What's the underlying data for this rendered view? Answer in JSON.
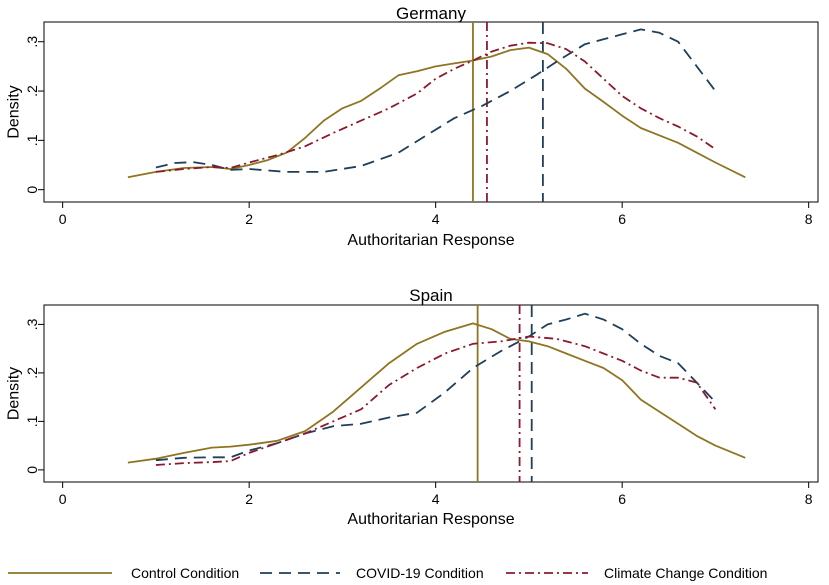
{
  "chart_data": [
    {
      "type": "line",
      "title": "Germany",
      "xlabel": "Authoritarian Response",
      "ylabel": "Density",
      "xlim": [
        -0.2,
        8.1
      ],
      "ylim": [
        -0.025,
        0.34
      ],
      "xticks": [
        0,
        2,
        4,
        6,
        8
      ],
      "yticks": [
        0,
        0.1,
        0.2,
        0.3
      ],
      "xtick_labels": [
        "0",
        "2",
        "4",
        "6",
        "8"
      ],
      "ytick_labels": [
        "0",
        ".1",
        ".2",
        ".3"
      ],
      "series": [
        {
          "name": "Control Condition",
          "color": "#8f7521",
          "dash": "solid",
          "x": [
            0.7,
            1.0,
            1.3,
            1.6,
            1.8,
            2.0,
            2.2,
            2.4,
            2.6,
            2.8,
            3.0,
            3.2,
            3.4,
            3.6,
            3.8,
            4.0,
            4.2,
            4.4,
            4.6,
            4.8,
            5.0,
            5.2,
            5.4,
            5.6,
            5.8,
            6.0,
            6.2,
            6.4,
            6.6,
            6.8,
            7.0,
            7.32
          ],
          "y": [
            0.025,
            0.036,
            0.044,
            0.046,
            0.042,
            0.05,
            0.06,
            0.075,
            0.105,
            0.14,
            0.165,
            0.18,
            0.205,
            0.232,
            0.24,
            0.25,
            0.256,
            0.262,
            0.27,
            0.283,
            0.288,
            0.275,
            0.245,
            0.205,
            0.178,
            0.15,
            0.125,
            0.11,
            0.095,
            0.075,
            0.055,
            0.025
          ]
        },
        {
          "name": "COVID-19 Condition",
          "color": "#1f3f5b",
          "dash": "dashed",
          "x": [
            1.0,
            1.2,
            1.4,
            1.6,
            1.8,
            2.0,
            2.4,
            2.8,
            3.2,
            3.6,
            3.9,
            4.2,
            4.5,
            4.8,
            5.1,
            5.3,
            5.6,
            5.8,
            6.0,
            6.2,
            6.4,
            6.6,
            6.8,
            7.0
          ],
          "y": [
            0.045,
            0.054,
            0.056,
            0.05,
            0.04,
            0.042,
            0.036,
            0.036,
            0.048,
            0.075,
            0.11,
            0.145,
            0.17,
            0.2,
            0.235,
            0.26,
            0.295,
            0.305,
            0.315,
            0.325,
            0.318,
            0.3,
            0.25,
            0.2
          ]
        },
        {
          "name": "Climate Change Condition",
          "color": "#8b1a2e",
          "dash": "dashdot",
          "x": [
            1.0,
            1.3,
            1.6,
            1.8,
            2.0,
            2.3,
            2.6,
            2.9,
            3.2,
            3.5,
            3.8,
            4.0,
            4.2,
            4.4,
            4.6,
            4.8,
            5.0,
            5.2,
            5.4,
            5.6,
            5.8,
            6.0,
            6.2,
            6.4,
            6.6,
            6.8,
            7.0
          ],
          "y": [
            0.036,
            0.042,
            0.046,
            0.044,
            0.055,
            0.07,
            0.088,
            0.115,
            0.14,
            0.165,
            0.195,
            0.225,
            0.245,
            0.262,
            0.28,
            0.292,
            0.298,
            0.297,
            0.285,
            0.26,
            0.225,
            0.19,
            0.165,
            0.145,
            0.128,
            0.108,
            0.082
          ]
        }
      ],
      "reference_lines": [
        {
          "name": "Control Condition",
          "x": 4.4,
          "color": "#8f7521",
          "dash": "solid"
        },
        {
          "name": "COVID-19 Condition",
          "x": 5.15,
          "color": "#1f3f5b",
          "dash": "dashed"
        },
        {
          "name": "Climate Change Condition",
          "x": 4.55,
          "color": "#8b1a2e",
          "dash": "dashdot"
        }
      ]
    },
    {
      "type": "line",
      "title": "Spain",
      "xlabel": "Authoritarian Response",
      "ylabel": "Density",
      "xlim": [
        -0.2,
        8.1
      ],
      "ylim": [
        -0.025,
        0.34
      ],
      "xticks": [
        0,
        2,
        4,
        6,
        8
      ],
      "yticks": [
        0,
        0.1,
        0.2,
        0.3
      ],
      "xtick_labels": [
        "0",
        "2",
        "4",
        "6",
        "8"
      ],
      "ytick_labels": [
        "0",
        ".1",
        ".2",
        ".3"
      ],
      "series": [
        {
          "name": "Control Condition",
          "color": "#8f7521",
          "dash": "solid",
          "x": [
            0.7,
            1.0,
            1.3,
            1.6,
            1.8,
            2.0,
            2.3,
            2.6,
            2.9,
            3.2,
            3.5,
            3.8,
            4.1,
            4.4,
            4.6,
            4.8,
            5.0,
            5.2,
            5.4,
            5.6,
            5.8,
            6.0,
            6.2,
            6.4,
            6.6,
            6.8,
            7.0,
            7.32
          ],
          "y": [
            0.015,
            0.023,
            0.035,
            0.046,
            0.048,
            0.052,
            0.06,
            0.08,
            0.12,
            0.17,
            0.22,
            0.26,
            0.285,
            0.302,
            0.29,
            0.27,
            0.265,
            0.255,
            0.24,
            0.225,
            0.21,
            0.185,
            0.145,
            0.12,
            0.095,
            0.07,
            0.05,
            0.025
          ]
        },
        {
          "name": "COVID-19 Condition",
          "color": "#1f3f5b",
          "dash": "dashed",
          "x": [
            1.0,
            1.3,
            1.6,
            1.8,
            2.0,
            2.3,
            2.6,
            2.9,
            3.2,
            3.5,
            3.8,
            4.1,
            4.4,
            4.7,
            5.0,
            5.2,
            5.4,
            5.6,
            5.8,
            6.0,
            6.2,
            6.4,
            6.6,
            6.8,
            7.0
          ],
          "y": [
            0.02,
            0.025,
            0.026,
            0.026,
            0.04,
            0.055,
            0.075,
            0.09,
            0.095,
            0.108,
            0.118,
            0.16,
            0.21,
            0.245,
            0.275,
            0.3,
            0.31,
            0.322,
            0.31,
            0.29,
            0.26,
            0.235,
            0.22,
            0.18,
            0.14
          ]
        },
        {
          "name": "Climate Change Condition",
          "color": "#8b1a2e",
          "dash": "dashdot",
          "x": [
            1.0,
            1.3,
            1.6,
            1.8,
            2.0,
            2.3,
            2.6,
            2.9,
            3.2,
            3.5,
            3.8,
            4.1,
            4.4,
            4.7,
            5.0,
            5.3,
            5.6,
            5.8,
            6.0,
            6.2,
            6.4,
            6.6,
            6.8,
            7.0
          ],
          "y": [
            0.01,
            0.014,
            0.016,
            0.018,
            0.035,
            0.055,
            0.075,
            0.1,
            0.125,
            0.175,
            0.21,
            0.24,
            0.26,
            0.265,
            0.275,
            0.27,
            0.255,
            0.24,
            0.225,
            0.205,
            0.19,
            0.19,
            0.18,
            0.125
          ]
        }
      ],
      "reference_lines": [
        {
          "name": "Control Condition",
          "x": 4.45,
          "color": "#8f7521",
          "dash": "solid"
        },
        {
          "name": "COVID-19 Condition",
          "x": 5.03,
          "color": "#1f3f5b",
          "dash": "dashed"
        },
        {
          "name": "Climate Change Condition",
          "x": 4.9,
          "color": "#8b1a2e",
          "dash": "dashdot"
        }
      ]
    }
  ],
  "legend": {
    "position": "bottom",
    "items": [
      {
        "label": "Control Condition",
        "color": "#8f7521",
        "dash": "solid"
      },
      {
        "label": "COVID-19 Condition",
        "color": "#1f3f5b",
        "dash": "dashed"
      },
      {
        "label": "Climate Change Condition",
        "color": "#8b1a2e",
        "dash": "dashdot"
      }
    ]
  }
}
